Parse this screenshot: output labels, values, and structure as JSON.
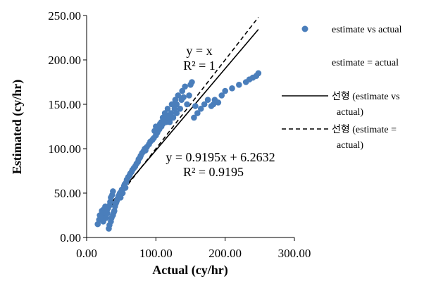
{
  "chart_data": {
    "type": "scatter",
    "xlabel": "Actual (cy/hr)",
    "ylabel": "Estimated (cy/hr)",
    "xlim": [
      0,
      300
    ],
    "ylim": [
      0,
      250
    ],
    "x_ticks": [
      "0.00",
      "100.00",
      "200.00",
      "300.00"
    ],
    "y_ticks": [
      "0.00",
      "50.00",
      "100.00",
      "150.00",
      "200.00",
      "250.00"
    ],
    "grid": false,
    "legend_position": "right",
    "series": [
      {
        "name": "estimate vs actual",
        "kind": "markers",
        "color": "#4a7ebb",
        "x": [
          16,
          18,
          19,
          20,
          22,
          23,
          24,
          25,
          26,
          27,
          28,
          29,
          30,
          31,
          32,
          33,
          33,
          34,
          35,
          35,
          36,
          37,
          38,
          38,
          39,
          40,
          41,
          42,
          43,
          44,
          45,
          46,
          47,
          48,
          49,
          50,
          51,
          52,
          53,
          54,
          55,
          56,
          57,
          58,
          60,
          62,
          63,
          65,
          66,
          68,
          70,
          72,
          74,
          75,
          77,
          78,
          80,
          82,
          84,
          85,
          87,
          90,
          92,
          95,
          97,
          98,
          100,
          100,
          102,
          103,
          105,
          106,
          108,
          108,
          110,
          110,
          112,
          113,
          115,
          115,
          117,
          118,
          120,
          122,
          123,
          125,
          127,
          128,
          130,
          130,
          132,
          135,
          137,
          138,
          140,
          142,
          145,
          148,
          150,
          152,
          155,
          157,
          160,
          165,
          170,
          175,
          180,
          183,
          185,
          190,
          195,
          200,
          210,
          220,
          230,
          235,
          240,
          245,
          248
        ],
        "y": [
          15,
          20,
          25,
          22,
          30,
          26,
          18,
          32,
          28,
          35,
          22,
          30,
          27,
          33,
          10,
          36,
          14,
          40,
          18,
          45,
          22,
          48,
          25,
          52,
          28,
          30,
          35,
          38,
          40,
          42,
          44,
          46,
          48,
          50,
          45,
          52,
          54,
          50,
          55,
          58,
          60,
          56,
          62,
          65,
          68,
          70,
          72,
          74,
          76,
          78,
          80,
          83,
          85,
          88,
          90,
          92,
          95,
          97,
          100,
          98,
          102,
          105,
          108,
          110,
          112,
          120,
          115,
          125,
          118,
          120,
          122,
          128,
          125,
          130,
          135,
          128,
          132,
          140,
          130,
          138,
          145,
          135,
          130,
          140,
          150,
          135,
          145,
          155,
          140,
          150,
          160,
          145,
          155,
          165,
          158,
          170,
          150,
          160,
          172,
          175,
          135,
          148,
          140,
          145,
          150,
          155,
          148,
          150,
          155,
          152,
          160,
          165,
          168,
          172,
          175,
          178,
          180,
          182,
          185
        ]
      },
      {
        "name": "estimate = actual",
        "kind": "markers",
        "color": "#4a7ebb",
        "x": [],
        "y": []
      },
      {
        "name": "선형 (estimate vs actual)",
        "kind": "trendline",
        "line_style": "solid",
        "slope": 0.9195,
        "intercept": 6.2632,
        "x_range": [
          16,
          248
        ]
      },
      {
        "name": "선형 (estimate = actual)",
        "kind": "trendline",
        "line_style": "dashed",
        "slope": 1,
        "intercept": 0,
        "x_range": [
          16,
          248
        ]
      }
    ],
    "annotations": [
      {
        "lines": [
          "y = x",
          "R² = 1"
        ]
      },
      {
        "lines": [
          "y = 0.9195x + 6.2632",
          "R² = 0.9195"
        ]
      }
    ],
    "legend": [
      {
        "marker": "dot",
        "label_lines": [
          "estimate vs actual"
        ]
      },
      {
        "marker": "none",
        "label_lines": [
          "estimate = actual"
        ]
      },
      {
        "marker": "solid-line",
        "label_lines": [
          "선형 (estimate vs",
          "actual)"
        ]
      },
      {
        "marker": "dashed-line",
        "label_lines": [
          "선형 (estimate =",
          "actual)"
        ]
      }
    ]
  }
}
